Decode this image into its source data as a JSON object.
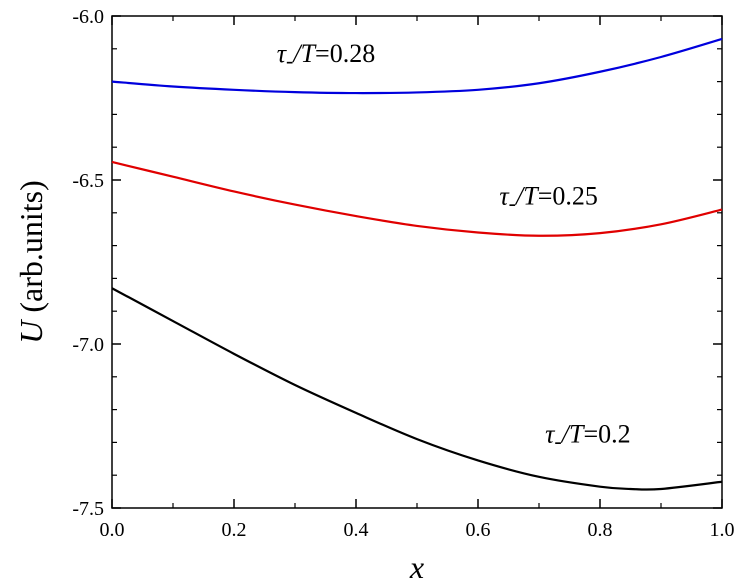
{
  "chart_data": {
    "type": "line",
    "xlabel_var": "x",
    "ylabel_var": "U",
    "ylabel_rest": " (arb.units)",
    "xlim": [
      0.0,
      1.0
    ],
    "ylim": [
      -7.5,
      -6.0
    ],
    "xticks": [
      "0.0",
      "0.2",
      "0.4",
      "0.6",
      "0.8",
      "1.0"
    ],
    "yticks": [
      "-6.0",
      "-6.5",
      "-7.0",
      "-7.5"
    ],
    "grid": false,
    "series": [
      {
        "color": "#0000dd",
        "x": [
          0.0,
          0.1,
          0.2,
          0.3,
          0.4,
          0.5,
          0.6,
          0.7,
          0.8,
          0.9,
          1.0
        ],
        "y": [
          -6.2,
          -6.215,
          -6.225,
          -6.232,
          -6.235,
          -6.233,
          -6.225,
          -6.205,
          -6.17,
          -6.125,
          -6.07
        ]
      },
      {
        "color": "#e00000",
        "x": [
          0.0,
          0.1,
          0.2,
          0.3,
          0.4,
          0.5,
          0.6,
          0.7,
          0.8,
          0.9,
          1.0
        ],
        "y": [
          -6.445,
          -6.49,
          -6.535,
          -6.575,
          -6.61,
          -6.64,
          -6.66,
          -6.67,
          -6.662,
          -6.635,
          -6.59
        ]
      },
      {
        "color": "#000000",
        "x": [
          0.0,
          0.1,
          0.2,
          0.3,
          0.4,
          0.5,
          0.6,
          0.7,
          0.8,
          0.85,
          0.9,
          1.0
        ],
        "y": [
          -6.83,
          -6.93,
          -7.03,
          -7.125,
          -7.21,
          -7.29,
          -7.355,
          -7.405,
          -7.435,
          -7.442,
          -7.442,
          -7.42
        ]
      }
    ],
    "annotations": [
      {
        "prefix": "τ",
        "sub": "-",
        "slash": "/",
        "var": "T",
        "value": "=0.28",
        "anchor_x": 0.27,
        "anchor_y": -6.14
      },
      {
        "prefix": "τ",
        "sub": "-",
        "slash": "/",
        "var": "T",
        "value": "=0.25",
        "anchor_x": 0.635,
        "anchor_y": -6.575
      },
      {
        "prefix": "τ",
        "sub": "-",
        "slash": "/",
        "var": "T",
        "value": "=0.2",
        "anchor_x": 0.71,
        "anchor_y": -7.3
      }
    ]
  }
}
